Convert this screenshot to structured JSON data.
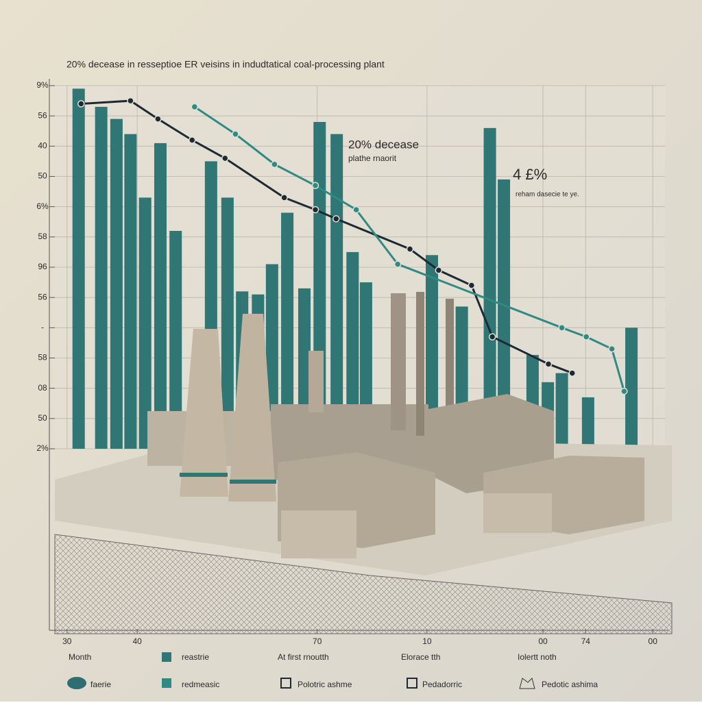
{
  "chart_data": {
    "type": "bar",
    "title": "20% decease in resseptioe ER veisins in indudtatical coal-processing plant",
    "annotations": [
      "20% decease",
      "plathe rnaorit",
      "4 £%",
      "reham dasecie te ye."
    ],
    "xlim": [
      0,
      100
    ],
    "xticks": [
      {
        "value": 2,
        "label": "30"
      },
      {
        "value": 13.5,
        "label": "40"
      },
      {
        "value": 43,
        "label": "70"
      },
      {
        "value": 61,
        "label": "10"
      },
      {
        "value": 80,
        "label": "00"
      },
      {
        "value": 87,
        "label": "74"
      },
      {
        "value": 98,
        "label": "00"
      }
    ],
    "ylim": [
      0,
      12
    ],
    "yticks": [
      {
        "value": 0,
        "label": "2%"
      },
      {
        "value": 1,
        "label": "50"
      },
      {
        "value": 2,
        "label": "08"
      },
      {
        "value": 3,
        "label": "58"
      },
      {
        "value": 4,
        "label": "-"
      },
      {
        "value": 5,
        "label": "56"
      },
      {
        "value": 6,
        "label": "96"
      },
      {
        "value": 7,
        "label": "58"
      },
      {
        "value": 8,
        "label": "6%"
      },
      {
        "value": 9,
        "label": "50"
      },
      {
        "value": 10,
        "label": "40"
      },
      {
        "value": 11,
        "label": "56"
      },
      {
        "value": 12,
        "label": "9%"
      }
    ],
    "grid": true,
    "legend_title": "Month",
    "legend_extra": [
      "At first rnoutth",
      "Elorace tth",
      "Iolertt noth",
      "faerie",
      "Pedadorric",
      "Pedotic ashima"
    ],
    "series": [
      {
        "name": "reastrie",
        "type": "bar",
        "color": "#2f7674",
        "x": [
          3.9,
          7.6,
          10.1,
          12.4,
          14.8,
          17.3,
          19.8,
          25.6,
          28.3,
          30.7,
          33.3,
          35.6,
          38.1,
          40.9,
          43.4,
          46.2,
          48.8,
          51.0,
          61.8,
          66.7,
          71.3,
          73.6,
          78.3,
          80.8,
          83.1,
          87.4,
          94.5
        ],
        "values": [
          11.9,
          11.3,
          10.9,
          10.4,
          8.3,
          10.1,
          7.2,
          9.5,
          8.3,
          5.2,
          5.1,
          6.1,
          7.8,
          5.3,
          10.8,
          10.4,
          6.5,
          5.5,
          6.4,
          4.7,
          10.6,
          8.9,
          3.1,
          2.2,
          2.5,
          1.7,
          4.0
        ]
      },
      {
        "name": "Polotric ashme",
        "type": "line",
        "color": "#1d2a33",
        "x": [
          4.3,
          12.4,
          16.9,
          22.5,
          27.9,
          37.6,
          42.7,
          46.1,
          58.2,
          62.9,
          68.3,
          71.7,
          80.9,
          84.8
        ],
        "values": [
          11.4,
          11.5,
          10.9,
          10.2,
          9.6,
          8.3,
          7.9,
          7.6,
          6.6,
          5.9,
          5.4,
          3.7,
          2.8,
          2.5
        ]
      },
      {
        "name": "redmeasic",
        "type": "line",
        "color": "#2e8a82",
        "x": [
          22.9,
          29.6,
          36.0,
          42.7,
          49.4,
          56.2,
          83.1,
          87.1,
          91.3,
          93.3
        ],
        "values": [
          11.3,
          10.4,
          9.4,
          8.7,
          7.9,
          6.1,
          4.0,
          3.7,
          3.3,
          1.9
        ]
      }
    ]
  }
}
